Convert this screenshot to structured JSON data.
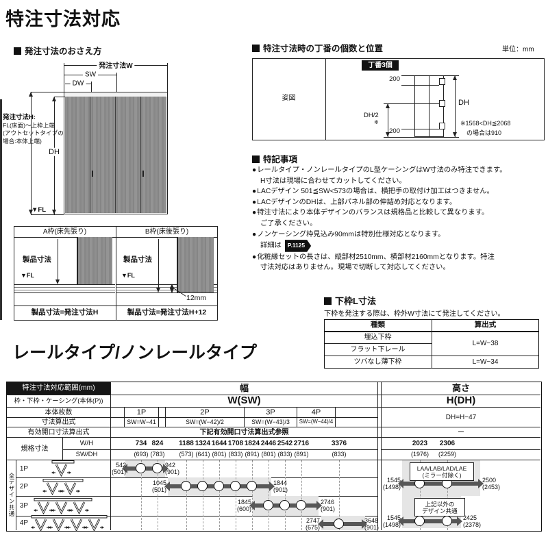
{
  "page_title": "特注寸法対応",
  "section2_title": "レールタイプ/ノンレールタイプ",
  "order_dims": {
    "heading": "発注寸法のおさえ方",
    "dim_w": "発注寸法W",
    "dim_sw": "SW",
    "dim_dw": "DW",
    "dim_h_title": "発注寸法H:",
    "dim_h_line1": "FL(床面)～上枠上端",
    "dim_h_line2": "(アウトセットタイプの",
    "dim_h_line3": "場合:本体上端)",
    "dim_dh": "DH",
    "fl": "▼FL"
  },
  "frames": {
    "a_title": "A枠(床先張り)",
    "b_title": "B枠(床後張り)",
    "product_dim": "製品寸法",
    "fl": "▼FL",
    "gap": "12mm",
    "a_formula": "製品寸法=発注寸法H",
    "b_formula": "製品寸法=発注寸法H+12"
  },
  "hinge": {
    "heading": "特注寸法時の丁番の個数と位置",
    "unit": "単位：mm",
    "figure_label": "姿図",
    "badge": "丁番3個",
    "dim_top": "200",
    "dim_mid": "DH/2",
    "mid_star": "※",
    "dim_bottom": "200",
    "dim_dh": "DH",
    "note1": "※1568<DH≦2068",
    "note2": "の場合は910"
  },
  "notes": {
    "heading": "特記事項",
    "bullet": "●",
    "items": [
      {
        "lines": [
          "レールタイプ・ノンレールタイプのL型ケーシングはW寸法のみ特注できます。",
          "H寸法は現場に合わせてカットしてください。"
        ]
      },
      {
        "lines": [
          "LACデザイン 501≦SW<573の場合は、横把手の取付け加工はつきません。"
        ]
      },
      {
        "lines": [
          "LACデザインのDHは、上部パネル部の伸詰め対応となります。"
        ]
      },
      {
        "lines": [
          "特注寸法により本体デザインのバランスは規格品と比較して異なります。",
          "ご了承ください。"
        ]
      },
      {
        "lines": [
          "ノンケーシング枠見込み90mmは特別仕様対応となります。",
          "詳細は "
        ],
        "badge": "P.1125"
      },
      {
        "lines": [
          "化粧縁セットの長さは、縦部材2510mm、横部材2160mmとなります。特注",
          "寸法対応はありません。現場で切断して対応してください。"
        ]
      }
    ]
  },
  "lower_frame": {
    "heading": "下枠L寸法",
    "note": "下枠を発注する際は、枠外W寸法にて発注してください。",
    "col_type": "種類",
    "col_formula": "算出式",
    "row1": "埋込下枠",
    "row2": "フラット下レール",
    "row3": "ツバなし薄下枠",
    "formula12": "L=W−38",
    "formula3": "L=W−34"
  },
  "table": {
    "corner": "特注寸法対応範囲(mm)",
    "width_title": "幅",
    "height_title": "高さ",
    "row2_label": "枠・下枠・ケーシング(本体(P))",
    "width_sym": "W(SW)",
    "height_sym": "H(DH)",
    "row3_label": "本体枚数",
    "row4_label": "寸法算出式",
    "height_formula": "DH=H−47",
    "row5_label": "有効開口寸法算出式",
    "row5_value": "下記有効開口寸法算出式参照",
    "row5_height": "ー",
    "row6_label": "規格寸法",
    "row6a": "W/H",
    "row6b": "SW/DH",
    "side_label": "全デザイン共通"
  },
  "chart_data": {
    "type": "table",
    "panels": [
      "1P",
      "2P",
      "3P",
      "4P"
    ],
    "width_formulas": [
      "SW=W−41",
      "SW=(W−42)/2",
      "SW=(W−43)/3",
      "SW=(W−44)/4"
    ],
    "width_standards": {
      "w_h": [
        "734",
        "824",
        "1188",
        "1324",
        "1644",
        "1708",
        "1824",
        "2446",
        "2542",
        "2716",
        "3376"
      ],
      "sw_dh": [
        "(693)",
        "(783)",
        "(573)",
        "(641)",
        "(801)",
        "(833)",
        "(891)",
        "(801)",
        "(833)",
        "(891)",
        "(833)"
      ]
    },
    "height_standards": {
      "w_h": [
        "2023",
        "2306"
      ],
      "sw_dh": [
        "(1976)",
        "(2259)"
      ]
    },
    "width_ranges": [
      {
        "panel": "1P",
        "min": "542",
        "min_sub": "(501)",
        "max": "942",
        "max_sub": "(901)",
        "standards": [
          734,
          824
        ]
      },
      {
        "panel": "2P",
        "min": "1045",
        "min_sub": "(501)",
        "max": "1844",
        "max_sub": "(901)",
        "standards": [
          1188,
          1324,
          1644,
          1708,
          1824
        ]
      },
      {
        "panel": "3P",
        "min": "1845",
        "min_sub": "(600)",
        "max": "2746",
        "max_sub": "(901)",
        "standards": [
          2446,
          2542,
          2716
        ]
      },
      {
        "panel": "4P",
        "min": "2747",
        "min_sub": "(675)",
        "max": "3648",
        "max_sub": "(901)",
        "standards": [
          3376
        ]
      }
    ],
    "height_ranges": [
      {
        "group_line1": "LAA/LAB/LAD/LAE",
        "group_line2": "(ミラー付除く)",
        "min": "1545",
        "min_sub": "(1498)",
        "max": "2500",
        "max_sub": "(2453)",
        "standards": [
          2023,
          2306
        ]
      },
      {
        "group_line1": "上記以外の",
        "group_line2": "デザイン共通",
        "min": "1545",
        "min_sub": "(1498)",
        "max": "2425",
        "max_sub": "(2378)",
        "standards": [
          2023,
          2306
        ]
      }
    ]
  }
}
